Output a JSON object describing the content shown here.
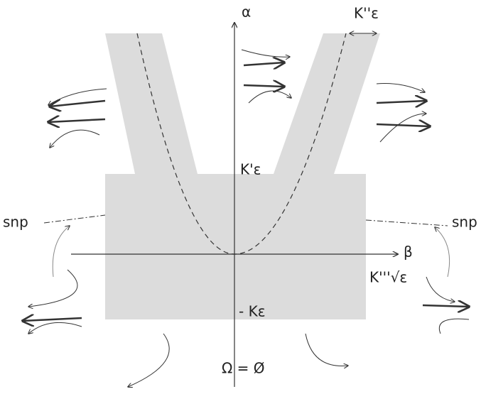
{
  "axes": {
    "y_label": "α",
    "x_label": "β"
  },
  "labels": {
    "k_double_prime": "K''ε",
    "k_prime": "K'ε",
    "k_triple_prime": "K'''√ε",
    "minus_k": "- Kε",
    "snp_left": "snp",
    "snp_right": "snp",
    "omega": "Ω = Ø"
  }
}
